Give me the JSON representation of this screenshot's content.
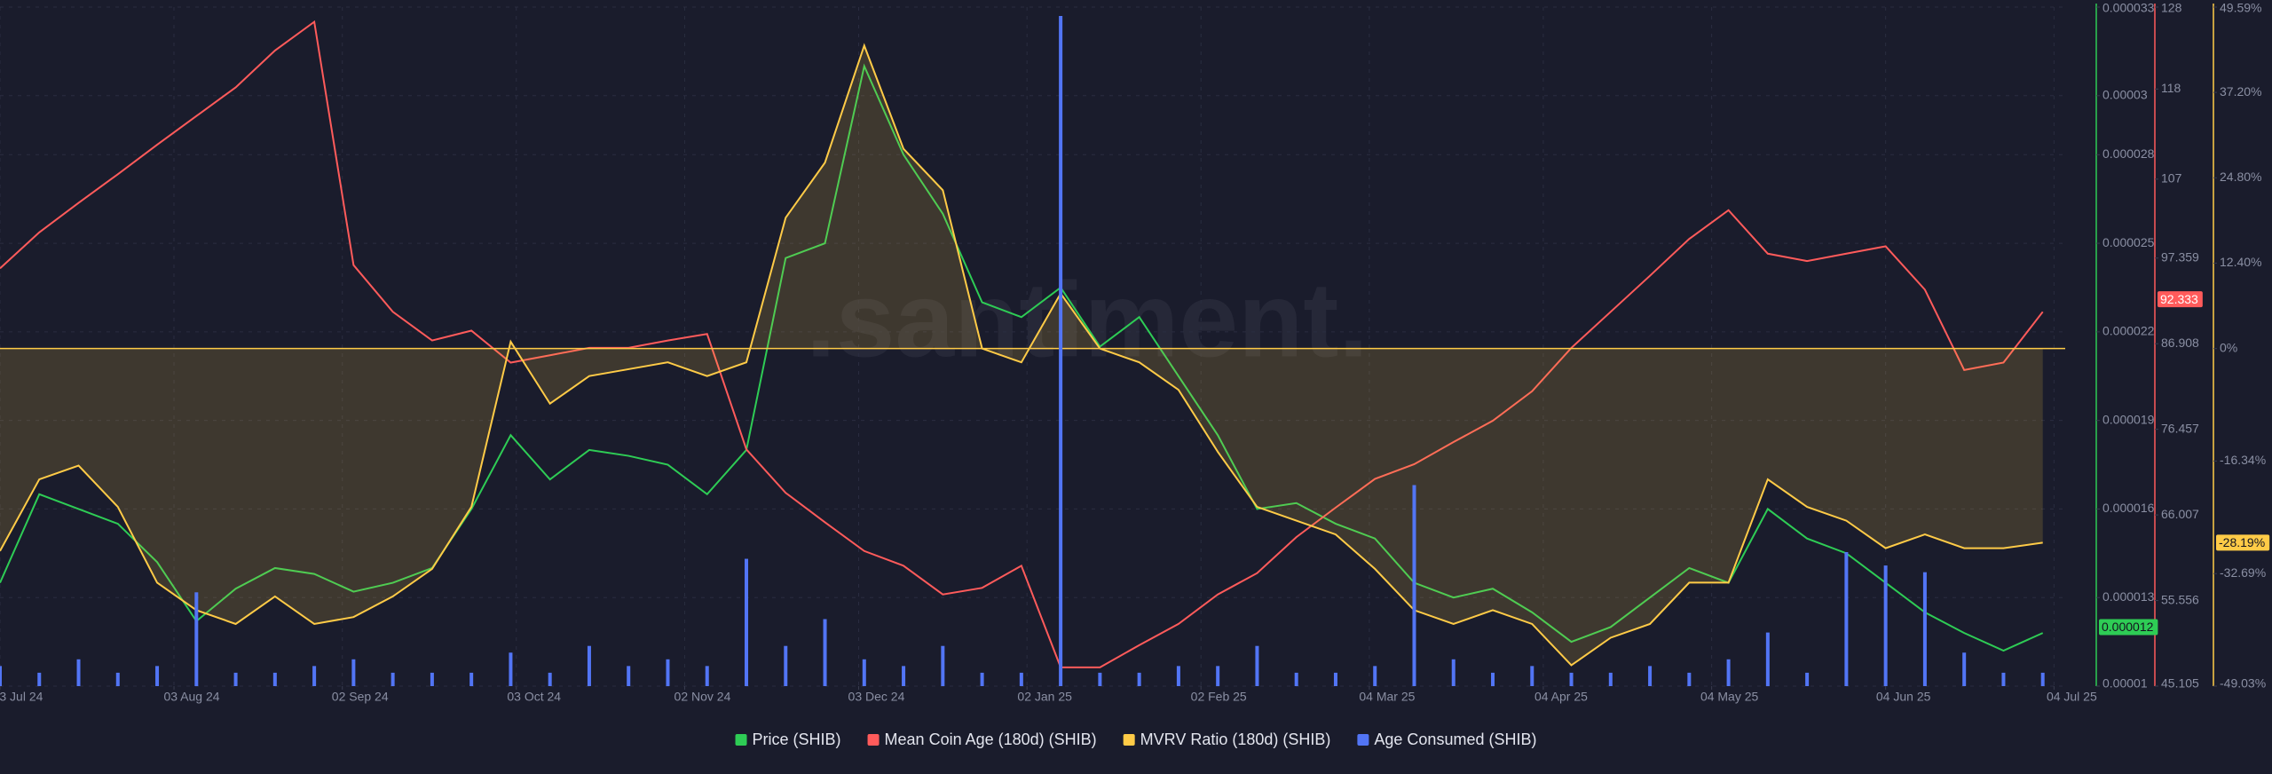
{
  "chart_data": {
    "type": "line",
    "watermark": ".santiment.",
    "legend": "bottom",
    "grid": true,
    "x": [
      "2024-07-03",
      "2024-07-10",
      "2024-07-17",
      "2024-07-24",
      "2024-07-31",
      "2024-08-07",
      "2024-08-14",
      "2024-08-21",
      "2024-08-28",
      "2024-09-04",
      "2024-09-11",
      "2024-09-18",
      "2024-09-25",
      "2024-10-02",
      "2024-10-09",
      "2024-10-16",
      "2024-10-23",
      "2024-10-30",
      "2024-11-06",
      "2024-11-13",
      "2024-11-20",
      "2024-11-27",
      "2024-12-04",
      "2024-12-11",
      "2024-12-18",
      "2024-12-25",
      "2025-01-01",
      "2025-01-08",
      "2025-01-15",
      "2025-01-22",
      "2025-01-29",
      "2025-02-05",
      "2025-02-12",
      "2025-02-19",
      "2025-02-26",
      "2025-03-05",
      "2025-03-12",
      "2025-03-19",
      "2025-03-26",
      "2025-04-02",
      "2025-04-09",
      "2025-04-16",
      "2025-04-23",
      "2025-04-30",
      "2025-05-07",
      "2025-05-14",
      "2025-05-21",
      "2025-05-28",
      "2025-06-04",
      "2025-06-11",
      "2025-06-18",
      "2025-06-25",
      "2025-07-02"
    ],
    "xlim": [
      "2024-07-03",
      "2025-07-06"
    ],
    "xticks": [
      {
        "value": "2024-07-03",
        "label": "03 Jul 24"
      },
      {
        "value": "2024-08-03",
        "label": "03 Aug 24"
      },
      {
        "value": "2024-09-02",
        "label": "02 Sep 24"
      },
      {
        "value": "2024-10-03",
        "label": "03 Oct 24"
      },
      {
        "value": "2024-11-02",
        "label": "02 Nov 24"
      },
      {
        "value": "2024-12-03",
        "label": "03 Dec 24"
      },
      {
        "value": "2025-01-02",
        "label": "02 Jan 25"
      },
      {
        "value": "2025-02-02",
        "label": "02 Feb 25"
      },
      {
        "value": "2025-03-04",
        "label": "04 Mar 25"
      },
      {
        "value": "2025-04-04",
        "label": "04 Apr 25"
      },
      {
        "value": "2025-05-04",
        "label": "04 May 25"
      },
      {
        "value": "2025-06-04",
        "label": "04 Jun 25"
      },
      {
        "value": "2025-07-04",
        "label": "04 Jul 25"
      }
    ],
    "ylim": [
      1e-05,
      3.3e-05
    ],
    "yticks": [
      1e-05,
      1.3e-05,
      1.6e-05,
      1.9e-05,
      2.2e-05,
      2.5e-05,
      2.8e-05,
      3e-05,
      3.3e-05
    ],
    "y2lim": [
      45.105,
      128
    ],
    "y2ticks": [
      45.105,
      55.556,
      66.007,
      76.457,
      86.908,
      97.359,
      107,
      118,
      128
    ],
    "y3lim": [
      -49.03,
      49.59
    ],
    "y3ticks": [
      {
        "value": -49.03,
        "label": "-49.03%"
      },
      {
        "value": -32.69,
        "label": "-32.69%"
      },
      {
        "value": -16.34,
        "label": "-16.34%"
      },
      {
        "value": 0,
        "label": "0%"
      },
      {
        "value": 12.4,
        "label": "12.40%"
      },
      {
        "value": 24.8,
        "label": "24.80%"
      },
      {
        "value": 37.2,
        "label": "37.20%"
      },
      {
        "value": 49.59,
        "label": "49.59%"
      }
    ],
    "series": [
      {
        "name": "Price (SHIB)",
        "type": "line",
        "axis": "y",
        "color": "#2ecc55",
        "current_value": 1.2e-05,
        "values": [
          1.35e-05,
          1.65e-05,
          1.6e-05,
          1.55e-05,
          1.42e-05,
          1.22e-05,
          1.33e-05,
          1.4e-05,
          1.38e-05,
          1.32e-05,
          1.35e-05,
          1.4e-05,
          1.6e-05,
          1.85e-05,
          1.7e-05,
          1.8e-05,
          1.78e-05,
          1.75e-05,
          1.65e-05,
          1.8e-05,
          2.45e-05,
          2.5e-05,
          3.1e-05,
          2.8e-05,
          2.6e-05,
          2.3e-05,
          2.25e-05,
          2.35e-05,
          2.15e-05,
          2.25e-05,
          2.05e-05,
          1.85e-05,
          1.6e-05,
          1.62e-05,
          1.55e-05,
          1.5e-05,
          1.35e-05,
          1.3e-05,
          1.33e-05,
          1.25e-05,
          1.15e-05,
          1.2e-05,
          1.3e-05,
          1.4e-05,
          1.35e-05,
          1.6e-05,
          1.5e-05,
          1.45e-05,
          1.35e-05,
          1.25e-05,
          1.18e-05,
          1.12e-05,
          1.18e-05
        ]
      },
      {
        "name": "Mean Coin Age (180d) (SHIB)",
        "type": "line",
        "axis": "y2",
        "color": "#ff5b5b",
        "current_value": 92.333,
        "values": [
          96.1,
          100.5,
          104.1,
          107.6,
          111.2,
          114.7,
          118.2,
          122.7,
          126.2,
          96.5,
          90.8,
          87.3,
          88.5,
          84.6,
          85.5,
          86.4,
          86.4,
          87.3,
          88.1,
          74.0,
          68.7,
          65.1,
          61.6,
          59.8,
          56.3,
          57.1,
          59.8,
          47.4,
          47.4,
          50.1,
          52.7,
          56.3,
          58.9,
          63.3,
          66.9,
          70.4,
          72.2,
          74.9,
          77.5,
          81.1,
          86.4,
          90.8,
          95.2,
          99.7,
          103.2,
          97.9,
          97.0,
          97.9,
          98.8,
          93.5,
          83.7,
          84.6,
          90.8
        ]
      },
      {
        "name": "MVRV Ratio (180d) (SHIB)",
        "type": "area",
        "axis": "y3",
        "color": "#ffcb47",
        "current_value": {
          "value": -28.19,
          "label": "-28.19%"
        },
        "values": [
          -29.4,
          -19,
          -17,
          -23,
          -34,
          -38,
          -40,
          -36,
          -40,
          -39,
          -36,
          -32,
          -23,
          1,
          -8,
          -4,
          -3,
          -2,
          -4,
          -2,
          19,
          27,
          44,
          29,
          23,
          0,
          -2,
          8,
          0,
          -2,
          -6,
          -15,
          -23,
          -25,
          -27,
          -32,
          -38,
          -40,
          -38,
          -40,
          -46,
          -42,
          -40,
          -34,
          -34,
          -19,
          -23,
          -25,
          -29,
          -27,
          -29,
          -29,
          -28.2
        ]
      },
      {
        "name": "Age Consumed (SHIB)",
        "type": "bar",
        "color": "#5275f5",
        "values": [
          3,
          2,
          4,
          2,
          3,
          14,
          2,
          2,
          3,
          4,
          2,
          2,
          2,
          5,
          2,
          6,
          3,
          4,
          3,
          19,
          6,
          10,
          4,
          3,
          6,
          2,
          2,
          100,
          2,
          2,
          3,
          3,
          6,
          2,
          2,
          3,
          30,
          4,
          2,
          3,
          2,
          2,
          3,
          2,
          4,
          8,
          2,
          20,
          18,
          17,
          5,
          2,
          2
        ]
      }
    ]
  }
}
